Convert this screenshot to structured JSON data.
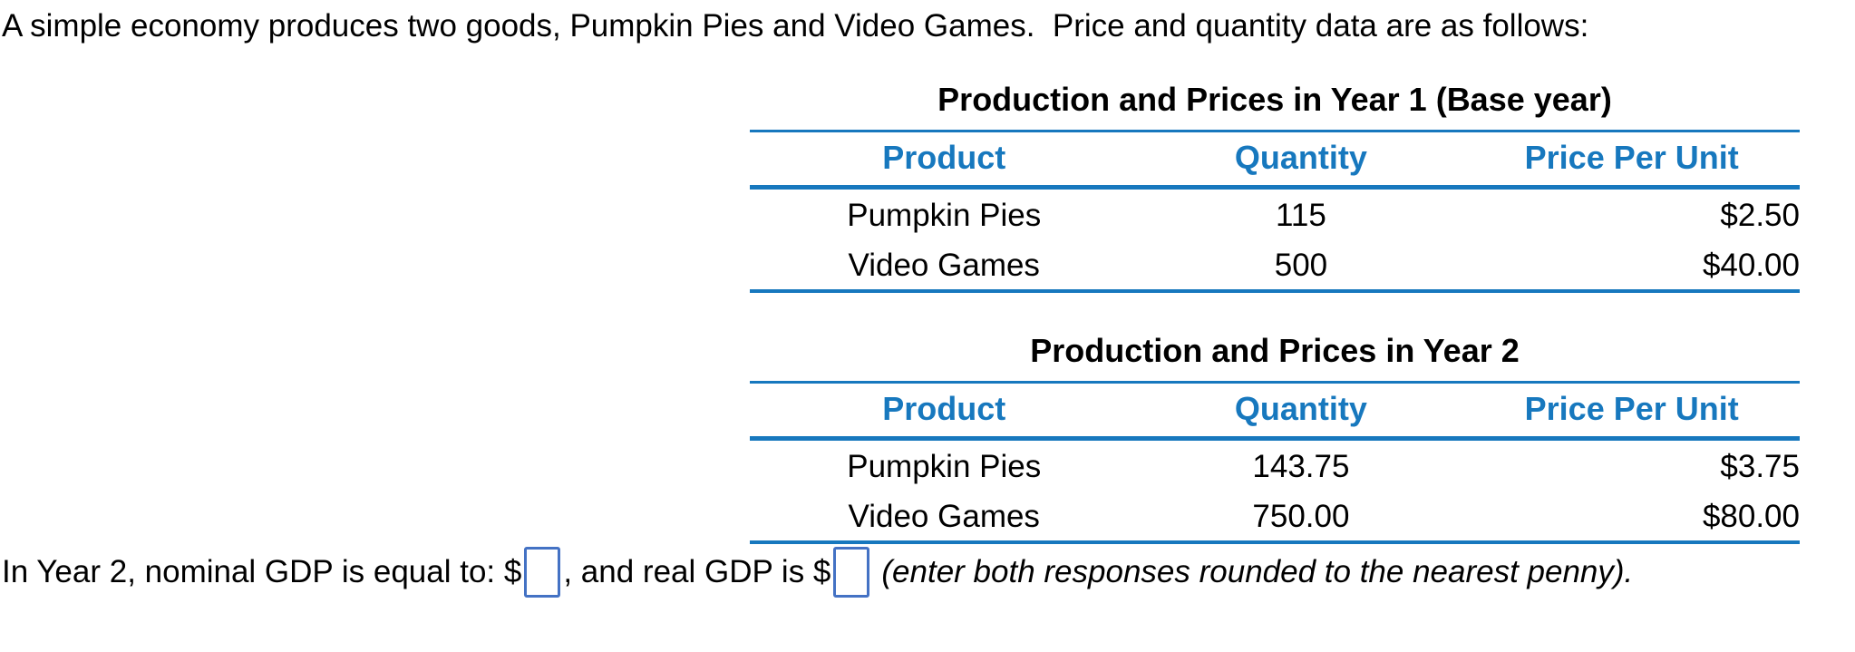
{
  "intro": "A simple economy produces two goods, Pumpkin Pies and Video Games.  Price and quantity data are as follows:",
  "colors": {
    "accent_blue": "#1778BE",
    "input_border_blue": "#4472C4",
    "text_color": "#000000"
  },
  "tables": [
    {
      "title": "Production and Prices in Year 1 (Base year)",
      "columns": [
        "Product",
        "Quantity",
        "Price Per Unit"
      ],
      "rows": [
        {
          "product": "Pumpkin Pies",
          "quantity": "115",
          "price": "$2.50"
        },
        {
          "product": "Video Games",
          "quantity": "500",
          "price": "$40.00"
        }
      ]
    },
    {
      "title": "Production and Prices in Year 2",
      "columns": [
        "Product",
        "Quantity",
        "Price Per Unit"
      ],
      "rows": [
        {
          "product": "Pumpkin Pies",
          "quantity": "143.75",
          "price": "$3.75"
        },
        {
          "product": "Video Games",
          "quantity": "750.00",
          "price": "$80.00"
        }
      ]
    }
  ],
  "question": {
    "part1": "In Year 2, nominal GDP is equal to: $",
    "nominal_gdp_input_value": "",
    "part2": ", and real GDP is $",
    "real_gdp_input_value": "",
    "part3_italic": "(enter both responses rounded to the nearest penny)."
  }
}
